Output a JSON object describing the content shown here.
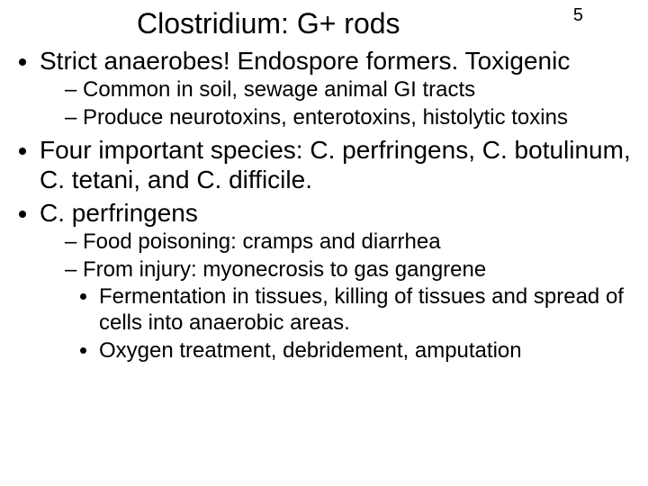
{
  "page_number": "5",
  "title": "Clostridium: G+ rods",
  "bullets": [
    {
      "text": "Strict anaerobes! Endospore formers. Toxigenic",
      "sub": [
        {
          "text": "Common in soil, sewage animal GI tracts"
        },
        {
          "text": "Produce neurotoxins, enterotoxins, histolytic toxins"
        }
      ]
    },
    {
      "text": "Four important species: C. perfringens, C. botulinum, C. tetani, and C. difficile."
    },
    {
      "text": "C. perfringens",
      "sub": [
        {
          "text": "Food poisoning: cramps and diarrhea"
        },
        {
          "text": "From injury: myonecrosis to gas gangrene",
          "sub": [
            {
              "text": "Fermentation in tissues, killing of tissues and spread of cells into anaerobic areas."
            },
            {
              "text": "Oxygen treatment, debridement, amputation"
            }
          ]
        }
      ]
    }
  ],
  "colors": {
    "background": "#ffffff",
    "text": "#000000"
  },
  "typography": {
    "title_fontsize_pt": 32,
    "body_fontsize_pt": 28,
    "sub_fontsize_pt": 24,
    "font_family": "Arial"
  }
}
